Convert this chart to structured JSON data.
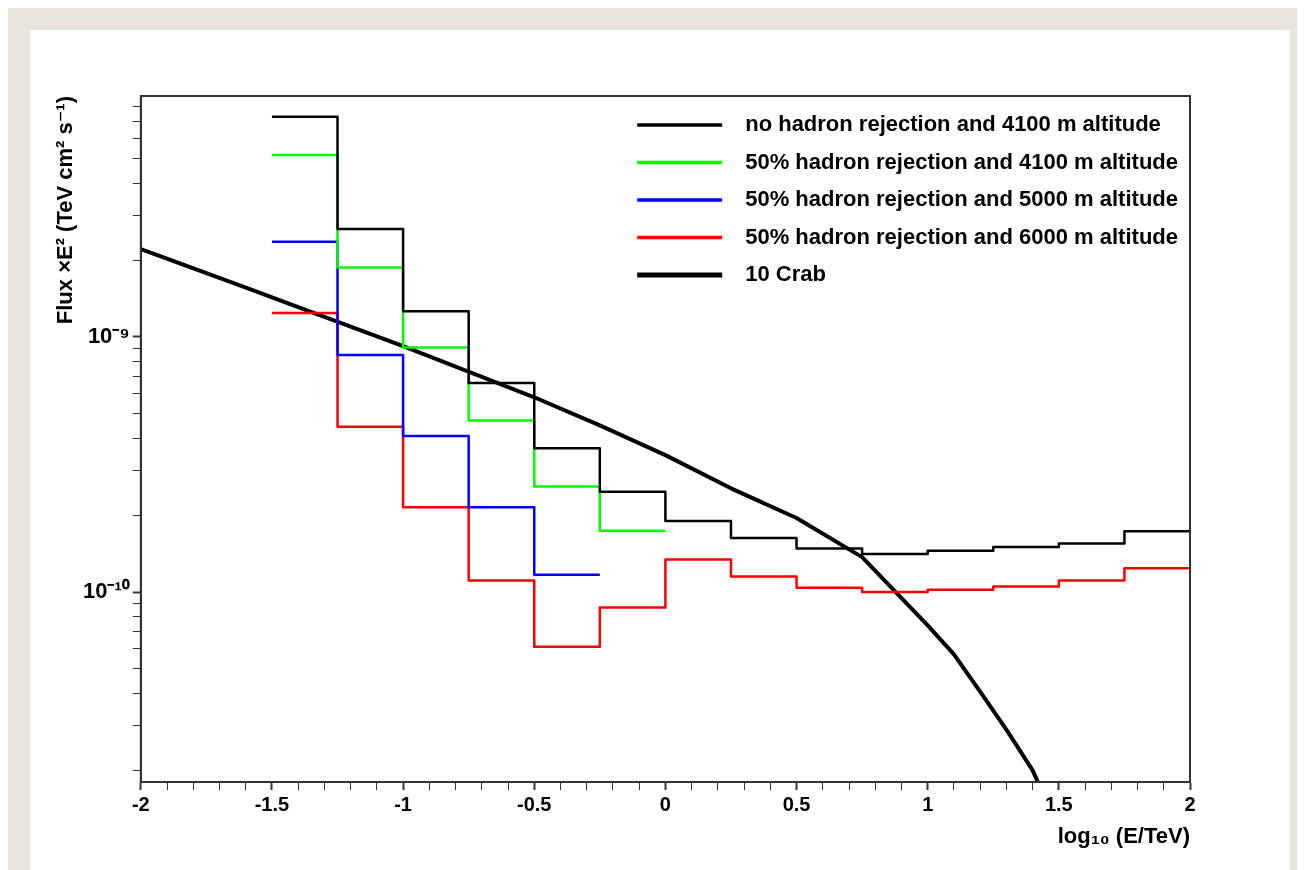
{
  "chart_data": {
    "type": "histogram",
    "xlabel": "log₁₀ (E/TeV)",
    "ylabel": "Flux ×E² (TeV cm² s⁻¹)",
    "log": "y",
    "legend": "top right",
    "bins": [
      -1.5,
      -1.25,
      -1,
      -0.75,
      -0.5,
      -0.25,
      0,
      0.25,
      0.5,
      0.75,
      1,
      1.25,
      1.5,
      1.75,
      2
    ],
    "series": [
      {
        "name": "no hadron rejection and 4100 m altitude",
        "color": "#000000",
        "values": [
          7.3e-09,
          2.65e-09,
          1.26e-09,
          6.6e-10,
          3.66e-10,
          2.47e-10,
          1.9e-10,
          1.63e-10,
          1.48e-10,
          1.41e-10,
          1.45e-10,
          1.5e-10,
          1.55e-10,
          1.73e-10
        ]
      },
      {
        "name": "50% hadron rejection and 4100 m altitude",
        "color": "#00ff00",
        "bins": [
          -1.5,
          -1.25,
          -1,
          -0.75,
          -0.5,
          -0.25,
          0
        ],
        "values": [
          5.17e-09,
          1.87e-09,
          9.1e-10,
          4.7e-10,
          2.59e-10,
          1.74e-10
        ]
      },
      {
        "name": "50% hadron rejection and 5000 m altitude",
        "color": "#0000ff",
        "bins": [
          -1.5,
          -1.25,
          -1,
          -0.75,
          -0.5,
          -0.25
        ],
        "values": [
          2.36e-09,
          8.5e-10,
          4.09e-10,
          2.15e-10,
          1.17e-10
        ]
      },
      {
        "name": "50% hadron rejection and 6000 m altitude",
        "color": "#ff0000",
        "values": [
          1.24e-09,
          4.45e-10,
          2.15e-10,
          1.11e-10,
          6.1e-11,
          8.7e-11,
          1.34e-10,
          1.15e-10,
          1.04e-10,
          1e-10,
          1.02e-10,
          1.05e-10,
          1.11e-10,
          1.24e-10
        ]
      },
      {
        "name": "10 Crab",
        "type": "line",
        "color": "#000000",
        "x": [
          -2,
          -1.75,
          -1.5,
          -1,
          -0.5,
          -0.25,
          0,
          0.25,
          0.5,
          0.75,
          1,
          1.1,
          1.2,
          1.3,
          1.4,
          1.42
        ],
        "values": [
          2.21e-09,
          1.78e-09,
          1.43e-09,
          9.2e-10,
          5.8e-10,
          4.5e-10,
          3.44e-10,
          2.55e-10,
          1.95e-10,
          1.37e-10,
          7.4e-11,
          5.7e-11,
          4.07e-11,
          2.89e-11,
          2e-11,
          1.8e-11
        ]
      }
    ],
    "xlim": [
      -2,
      2
    ],
    "ylim": [
      1.8e-11,
      8.8e-09
    ],
    "xticks": [
      -2,
      {
        "value": -1.9,
        "label": null
      },
      {
        "value": -1.8,
        "label": null
      },
      {
        "value": -1.7,
        "label": null
      },
      {
        "value": -1.6,
        "label": null
      },
      -1.5,
      {
        "value": -1.4,
        "label": null
      },
      {
        "value": -1.3,
        "label": null
      },
      {
        "value": -1.2,
        "label": null
      },
      {
        "value": -1.1,
        "label": null
      },
      -1,
      {
        "value": -0.9,
        "label": null
      },
      {
        "value": -0.8,
        "label": null
      },
      {
        "value": -0.7,
        "label": null
      },
      {
        "value": -0.6,
        "label": null
      },
      -0.5,
      {
        "value": -0.4,
        "label": null
      },
      {
        "value": -0.3,
        "label": null
      },
      {
        "value": -0.2,
        "label": null
      },
      {
        "value": -0.1,
        "label": null
      },
      0,
      {
        "value": 0.1,
        "label": null
      },
      {
        "value": 0.2,
        "label": null
      },
      {
        "value": 0.3,
        "label": null
      },
      {
        "value": 0.4,
        "label": null
      },
      0.5,
      {
        "value": 0.6,
        "label": null
      },
      {
        "value": 0.7,
        "label": null
      },
      {
        "value": 0.8,
        "label": null
      },
      {
        "value": 0.9,
        "label": null
      },
      1,
      {
        "value": 1.1,
        "label": null
      },
      {
        "value": 1.2,
        "label": null
      },
      {
        "value": 1.3,
        "label": null
      },
      {
        "value": 1.4,
        "label": null
      },
      1.5,
      {
        "value": 1.6,
        "label": null
      },
      {
        "value": 1.7,
        "label": null
      },
      {
        "value": 1.8,
        "label": null
      },
      {
        "value": 1.9,
        "label": null
      },
      2
    ],
    "yticks": [
      {
        "value": 2e-11,
        "label": null
      },
      {
        "value": 3e-11,
        "label": null
      },
      {
        "value": 4e-11,
        "label": null
      },
      {
        "value": 5e-11,
        "label": null
      },
      {
        "value": 6e-11,
        "label": null
      },
      {
        "value": 7e-11,
        "label": null
      },
      {
        "value": 8e-11,
        "label": null
      },
      {
        "value": 9e-11,
        "label": null
      },
      {
        "value": 1e-10,
        "label": "10⁻¹⁰"
      },
      {
        "value": 2e-10,
        "label": null
      },
      {
        "value": 3e-10,
        "label": null
      },
      {
        "value": 4e-10,
        "label": null
      },
      {
        "value": 5e-10,
        "label": null
      },
      {
        "value": 6e-10,
        "label": null
      },
      {
        "value": 7e-10,
        "label": null
      },
      {
        "value": 8e-10,
        "label": null
      },
      {
        "value": 9e-10,
        "label": null
      },
      {
        "value": 1e-09,
        "label": "10⁻⁹"
      },
      {
        "value": 2e-09,
        "label": null
      },
      {
        "value": 3e-09,
        "label": null
      },
      {
        "value": 4e-09,
        "label": null
      },
      {
        "value": 5e-09,
        "label": null
      },
      {
        "value": 6e-09,
        "label": null
      },
      {
        "value": 7e-09,
        "label": null
      },
      {
        "value": 8e-09,
        "label": null
      }
    ]
  }
}
